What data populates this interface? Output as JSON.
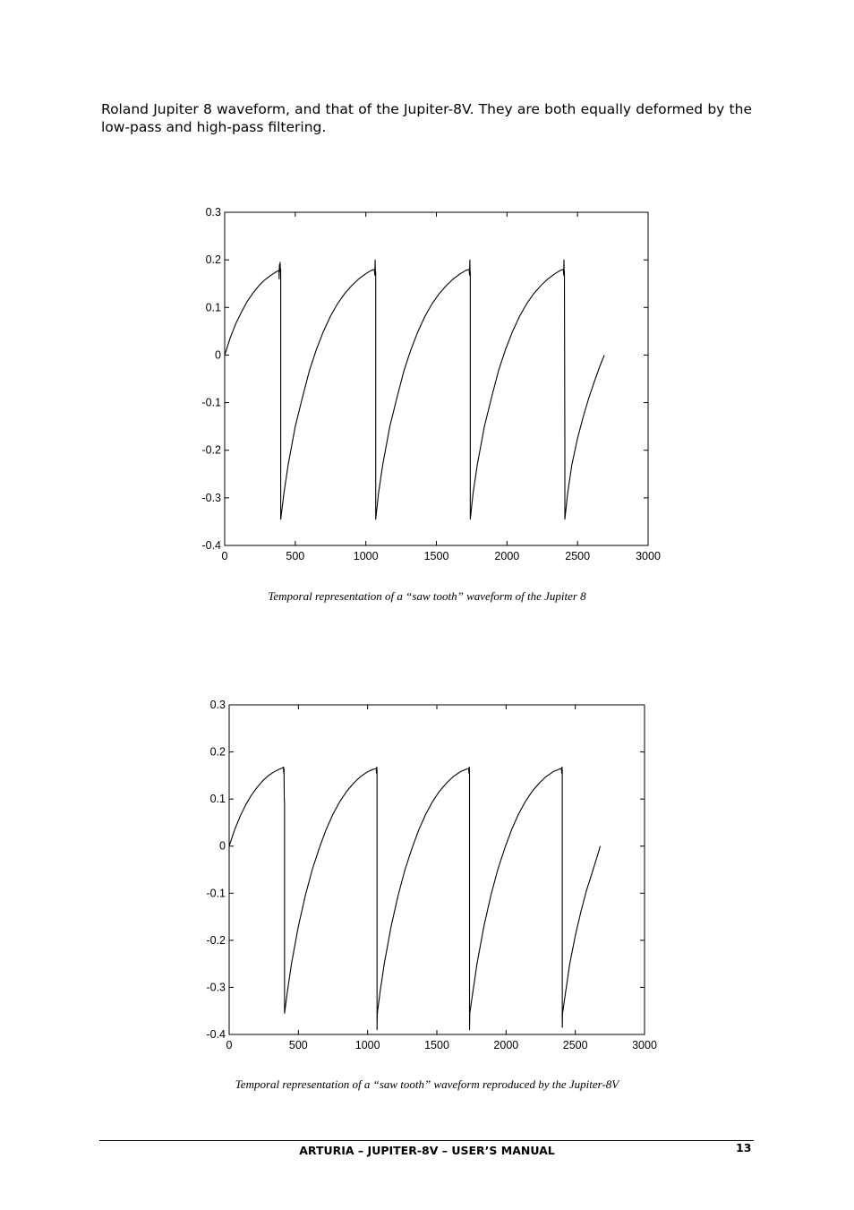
{
  "intro_text": "Roland Jupiter 8 waveform, and that of the Jupiter-8V. They are both equally deformed by the low-pass and high-pass filtering.",
  "footer": {
    "title": "ARTURIA – JUPITER-8V – USER’S MANUAL",
    "page_number": "13"
  },
  "chart_data": [
    {
      "type": "line",
      "caption": "Temporal representation of a “saw tooth” waveform of the Jupiter 8",
      "xlim": [
        0,
        3000
      ],
      "ylim": [
        -0.4,
        0.3
      ],
      "x_ticks": [
        0,
        500,
        1000,
        1500,
        2000,
        2500,
        3000
      ],
      "y_ticks": [
        0.3,
        0.2,
        0.1,
        0,
        -0.1,
        -0.2,
        -0.3,
        -0.4
      ],
      "x_tick_labels": [
        "0",
        "500",
        "1000",
        "1500",
        "2000",
        "2500",
        "3000"
      ],
      "y_tick_labels": [
        "0.3",
        "0.2",
        "0.1",
        "0",
        "-0.1",
        "-0.2",
        "-0.3",
        "-0.4"
      ],
      "grid": false,
      "series": [
        {
          "color": "#000000",
          "x": [
            0,
            40,
            80,
            120,
            160,
            200,
            240,
            280,
            320,
            360,
            385,
            386,
            388,
            390,
            393,
            395,
            397,
            397,
            420,
            450,
            500,
            550,
            600,
            650,
            700,
            750,
            800,
            850,
            900,
            950,
            1000,
            1040,
            1060,
            1064,
            1066,
            1068,
            1070,
            1070,
            1090,
            1120,
            1170,
            1220,
            1270,
            1320,
            1370,
            1420,
            1470,
            1520,
            1570,
            1620,
            1670,
            1710,
            1732,
            1735,
            1737,
            1739,
            1740,
            1740,
            1760,
            1790,
            1840,
            1890,
            1940,
            1990,
            2040,
            2090,
            2140,
            2190,
            2240,
            2290,
            2340,
            2380,
            2400,
            2402,
            2404,
            2405,
            2407,
            2410,
            2410,
            2430,
            2460,
            2500,
            2540,
            2580,
            2620,
            2660,
            2690
          ],
          "y": [
            0,
            0.037,
            0.067,
            0.091,
            0.113,
            0.13,
            0.145,
            0.157,
            0.166,
            0.174,
            0.178,
            0.16,
            0.19,
            0.18,
            0.195,
            0.175,
            0.18,
            -0.345,
            -0.29,
            -0.23,
            -0.15,
            -0.09,
            -0.033,
            0.012,
            0.05,
            0.082,
            0.108,
            0.129,
            0.146,
            0.16,
            0.171,
            0.178,
            0.18,
            0.168,
            0.2,
            0.17,
            0.175,
            -0.345,
            -0.29,
            -0.23,
            -0.15,
            -0.09,
            -0.033,
            0.012,
            0.05,
            0.082,
            0.108,
            0.129,
            0.146,
            0.16,
            0.171,
            0.178,
            0.18,
            0.168,
            0.2,
            0.17,
            0.175,
            -0.345,
            -0.29,
            -0.23,
            -0.15,
            -0.09,
            -0.033,
            0.012,
            0.05,
            0.082,
            0.108,
            0.129,
            0.146,
            0.16,
            0.171,
            0.178,
            0.18,
            0.168,
            0.2,
            0.17,
            0.175,
            -0.18,
            -0.345,
            -0.29,
            -0.23,
            -0.175,
            -0.13,
            -0.09,
            -0.055,
            -0.022,
            0
          ]
        }
      ]
    },
    {
      "type": "line",
      "caption": "Temporal representation of a “saw tooth” waveform reproduced by the Jupiter-8V",
      "xlim": [
        0,
        3000
      ],
      "ylim": [
        -0.4,
        0.3
      ],
      "x_ticks": [
        0,
        500,
        1000,
        1500,
        2000,
        2500,
        3000
      ],
      "y_ticks": [
        0.3,
        0.2,
        0.1,
        0,
        -0.1,
        -0.2,
        -0.3,
        -0.4
      ],
      "x_tick_labels": [
        "0",
        "500",
        "1000",
        "1500",
        "2000",
        "2500",
        "3000"
      ],
      "y_tick_labels": [
        "0.3",
        "0.2",
        "0.1",
        "0",
        "-0.1",
        "-0.2",
        "-0.3",
        "-0.4"
      ],
      "grid": false,
      "series": [
        {
          "color": "#000000",
          "x": [
            0,
            40,
            80,
            120,
            160,
            200,
            240,
            280,
            320,
            360,
            385,
            392,
            394,
            396,
            398,
            400,
            400,
            420,
            450,
            500,
            550,
            600,
            650,
            700,
            750,
            800,
            850,
            900,
            950,
            1000,
            1040,
            1062,
            1064,
            1066,
            1068,
            1068,
            1070,
            1090,
            1120,
            1170,
            1220,
            1270,
            1320,
            1370,
            1420,
            1470,
            1520,
            1570,
            1620,
            1670,
            1710,
            1730,
            1732,
            1734,
            1736,
            1736,
            1738,
            1760,
            1790,
            1840,
            1890,
            1940,
            1990,
            2040,
            2090,
            2140,
            2190,
            2240,
            2290,
            2340,
            2380,
            2400,
            2402,
            2404,
            2406,
            2406,
            2408,
            2430,
            2460,
            2500,
            2540,
            2580,
            2620,
            2660,
            2680
          ],
          "y": [
            0,
            0.035,
            0.064,
            0.088,
            0.108,
            0.124,
            0.138,
            0.149,
            0.157,
            0.163,
            0.166,
            0.168,
            0.155,
            0.165,
            0.1,
            0.09,
            -0.355,
            -0.31,
            -0.25,
            -0.17,
            -0.105,
            -0.05,
            -0.005,
            0.035,
            0.068,
            0.095,
            0.117,
            0.134,
            0.148,
            0.158,
            0.163,
            0.165,
            0.155,
            0.168,
            0.16,
            -0.39,
            -0.355,
            -0.31,
            -0.25,
            -0.17,
            -0.105,
            -0.05,
            -0.005,
            0.035,
            0.068,
            0.095,
            0.117,
            0.134,
            0.148,
            0.158,
            0.163,
            0.165,
            0.155,
            0.168,
            0.16,
            -0.39,
            -0.355,
            -0.31,
            -0.25,
            -0.17,
            -0.105,
            -0.05,
            -0.005,
            0.035,
            0.068,
            0.095,
            0.117,
            0.134,
            0.148,
            0.158,
            0.163,
            0.165,
            0.155,
            0.168,
            0.16,
            -0.385,
            -0.355,
            -0.31,
            -0.25,
            -0.19,
            -0.14,
            -0.095,
            -0.058,
            -0.02,
            0
          ]
        }
      ]
    }
  ]
}
